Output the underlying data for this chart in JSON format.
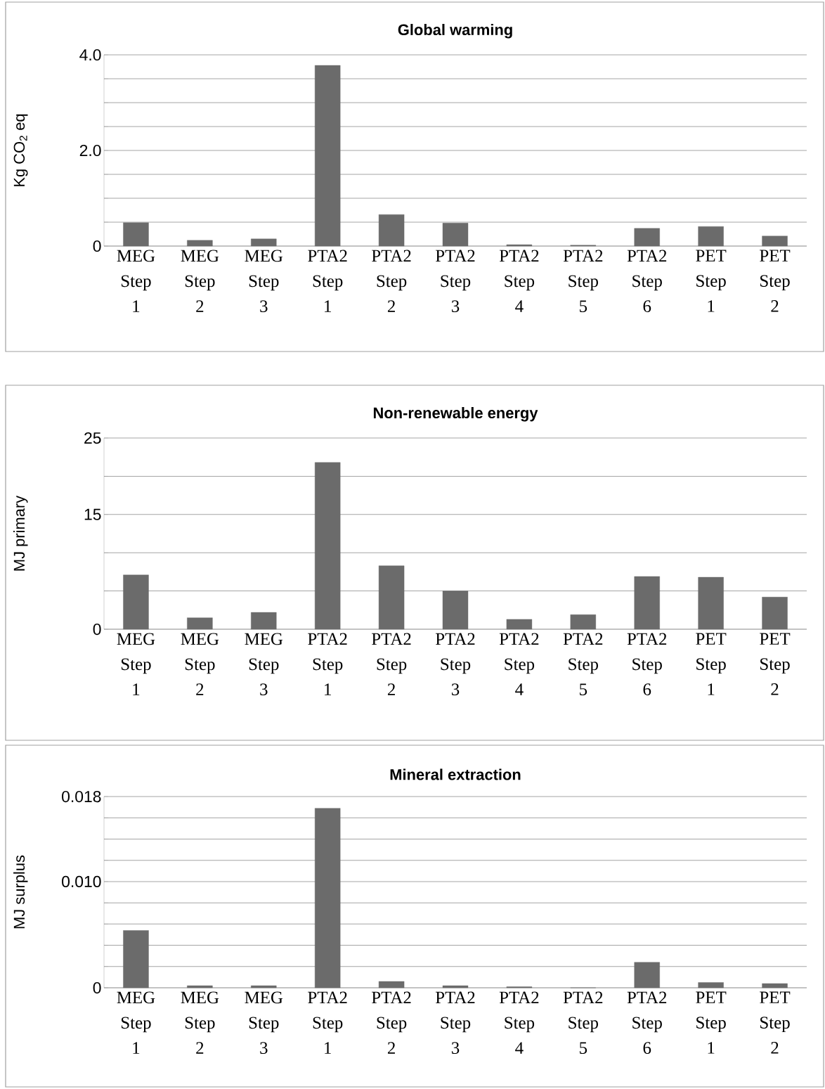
{
  "chart_data": [
    {
      "type": "bar",
      "title": "Global warming",
      "ylabel": "Kg CO$_{2}$ eq",
      "categories": [
        "MEG Step 1",
        "MEG Step 2",
        "MEG Step 3",
        "PTA2 Step 1",
        "PTA2 Step 2",
        "PTA2 Step 3",
        "PTA2 Step 4",
        "PTA2 Step 5",
        "PTA2 Step 6",
        "PET Step 1",
        "PET Step 2"
      ],
      "values": [
        0.49,
        0.12,
        0.15,
        3.78,
        0.66,
        0.48,
        0.03,
        0.02,
        0.37,
        0.41,
        0.21
      ],
      "color": "#6b6b6b",
      "ylim": [
        0,
        4
      ],
      "yticks": [
        0,
        {
          "value": 0.5,
          "label": null
        },
        {
          "value": 1,
          "label": null
        },
        {
          "value": 1.5,
          "label": null
        },
        {
          "value": 2,
          "label": "2.0"
        },
        {
          "value": 2.5,
          "label": null
        },
        {
          "value": 3,
          "label": null
        },
        {
          "value": 3.5,
          "label": null
        },
        {
          "value": 4,
          "label": "4.0"
        }
      ],
      "grid": "y"
    },
    {
      "type": "bar",
      "title": "Non-renewable energy",
      "ylabel": "MJ primary",
      "categories": [
        "MEG Step 1",
        "MEG Step 2",
        "MEG Step 3",
        "PTA2 Step 1",
        "PTA2 Step 2",
        "PTA2 Step 3",
        "PTA2 Step 4",
        "PTA2 Step 5",
        "PTA2 Step 6",
        "PET Step 1",
        "PET Step 2"
      ],
      "values": [
        7.1,
        1.5,
        2.2,
        21.8,
        8.3,
        5.0,
        1.3,
        1.9,
        6.9,
        6.8,
        4.2
      ],
      "color": "#6b6b6b",
      "ylim": [
        0,
        25
      ],
      "yticks": [
        0,
        {
          "value": 5,
          "label": null
        },
        {
          "value": 10,
          "label": null
        },
        15,
        {
          "value": 20,
          "label": null
        },
        25
      ],
      "grid": "y"
    },
    {
      "type": "bar",
      "title": "Mineral extraction",
      "ylabel": "MJ surplus",
      "categories": [
        "MEG Step 1",
        "MEG Step 2",
        "MEG Step 3",
        "PTA2 Step 1",
        "PTA2 Step 2",
        "PTA2 Step 3",
        "PTA2 Step 4",
        "PTA2 Step 5",
        "PTA2 Step 6",
        "PET Step 1",
        "PET Step 2"
      ],
      "values": [
        0.0054,
        0.0002,
        0.0002,
        0.0169,
        0.0006,
        0.0002,
        0.0001,
        0,
        0.0024,
        0.0005,
        0.0004
      ],
      "color": "#6b6b6b",
      "ylim": [
        0,
        0.018
      ],
      "yticks": [
        0,
        {
          "value": 0.002,
          "label": null
        },
        {
          "value": 0.004,
          "label": null
        },
        {
          "value": 0.006,
          "label": null
        },
        {
          "value": 0.008,
          "label": null
        },
        {
          "value": 0.01,
          "label": "0.010"
        },
        {
          "value": 0.012,
          "label": null
        },
        {
          "value": 0.014,
          "label": null
        },
        {
          "value": 0.016,
          "label": null
        },
        0.018
      ],
      "grid": "y"
    }
  ]
}
